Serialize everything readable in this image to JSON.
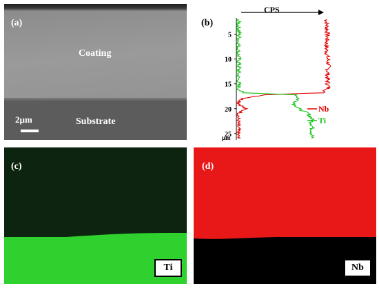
{
  "panel_a": {
    "label": "(a)",
    "coating_label": "Coating",
    "substrate_label": "Substrate",
    "scale_label": "2µm"
  },
  "panel_b": {
    "label": "(b)",
    "top_axis_label": "CPS",
    "depth_ticks": [
      "5",
      "10",
      "15",
      "20",
      "25"
    ],
    "depth_unit": "µm",
    "legend": [
      {
        "name": "Nb",
        "color": "#e00000"
      },
      {
        "name": "Ti",
        "color": "#19c419"
      }
    ]
  },
  "panel_c": {
    "label": "(c)",
    "element": "Ti",
    "map_color": "#2ed12e"
  },
  "panel_d": {
    "label": "(d)",
    "element": "Nb",
    "map_color": "#e81818"
  },
  "chart_data": {
    "type": "line",
    "title": "",
    "xlabel": "CPS",
    "ylabel": "µm",
    "ylim": [
      2,
      26
    ],
    "y_inverted": true,
    "series": [
      {
        "name": "Nb",
        "y": [
          2,
          5,
          8,
          11,
          14,
          16,
          16.8,
          17.2,
          18,
          19,
          20,
          21,
          22,
          24,
          26
        ],
        "x": [
          0.9,
          0.91,
          0.9,
          0.92,
          0.91,
          0.92,
          0.86,
          0.3,
          0.05,
          0.02,
          0.08,
          0.02,
          0.01,
          0.01,
          0.01
        ]
      },
      {
        "name": "Ti",
        "y": [
          2,
          5,
          8,
          11,
          14,
          16,
          16.8,
          17.2,
          18,
          19,
          20,
          21,
          22,
          24,
          26
        ],
        "x": [
          0.01,
          0.02,
          0.01,
          0.02,
          0.01,
          0.02,
          0.05,
          0.6,
          0.62,
          0.58,
          0.62,
          0.72,
          0.75,
          0.76,
          0.75
        ]
      }
    ]
  }
}
